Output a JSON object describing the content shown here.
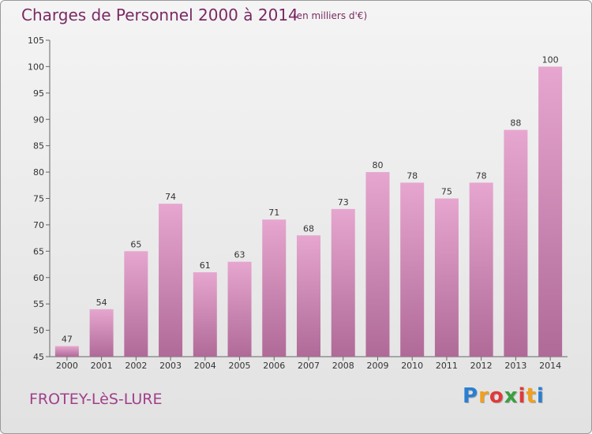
{
  "header": {
    "title": "Charges de Personnel 2000 à 2014",
    "subtitle": "(en milliers d'€)"
  },
  "footer": {
    "commune": "FROTEY-LèS-LURE",
    "brand": "Proxiti",
    "brand_letters": [
      "P",
      "r",
      "o",
      "x",
      "i",
      "t",
      "i"
    ],
    "brand_colors": [
      "#2a7fd0",
      "#f0a020",
      "#e03a3a",
      "#3aa040",
      "#e03a3a",
      "#f0a020",
      "#2a7fd0"
    ]
  },
  "chart_data": {
    "type": "bar",
    "categories": [
      "2000",
      "2001",
      "2002",
      "2003",
      "2004",
      "2005",
      "2006",
      "2007",
      "2008",
      "2009",
      "2010",
      "2011",
      "2012",
      "2013",
      "2014"
    ],
    "values": [
      47,
      54,
      65,
      74,
      61,
      63,
      71,
      68,
      73,
      80,
      78,
      75,
      78,
      88,
      100
    ],
    "ylim": [
      45,
      105
    ],
    "yticks": [
      45,
      50,
      55,
      60,
      65,
      70,
      75,
      80,
      85,
      90,
      95,
      100,
      105
    ],
    "grid": false,
    "colors": {
      "bar_top": "#e6a6cf",
      "bar_bottom": "#b06a98",
      "axis": "#666666",
      "text": "#333333"
    }
  }
}
